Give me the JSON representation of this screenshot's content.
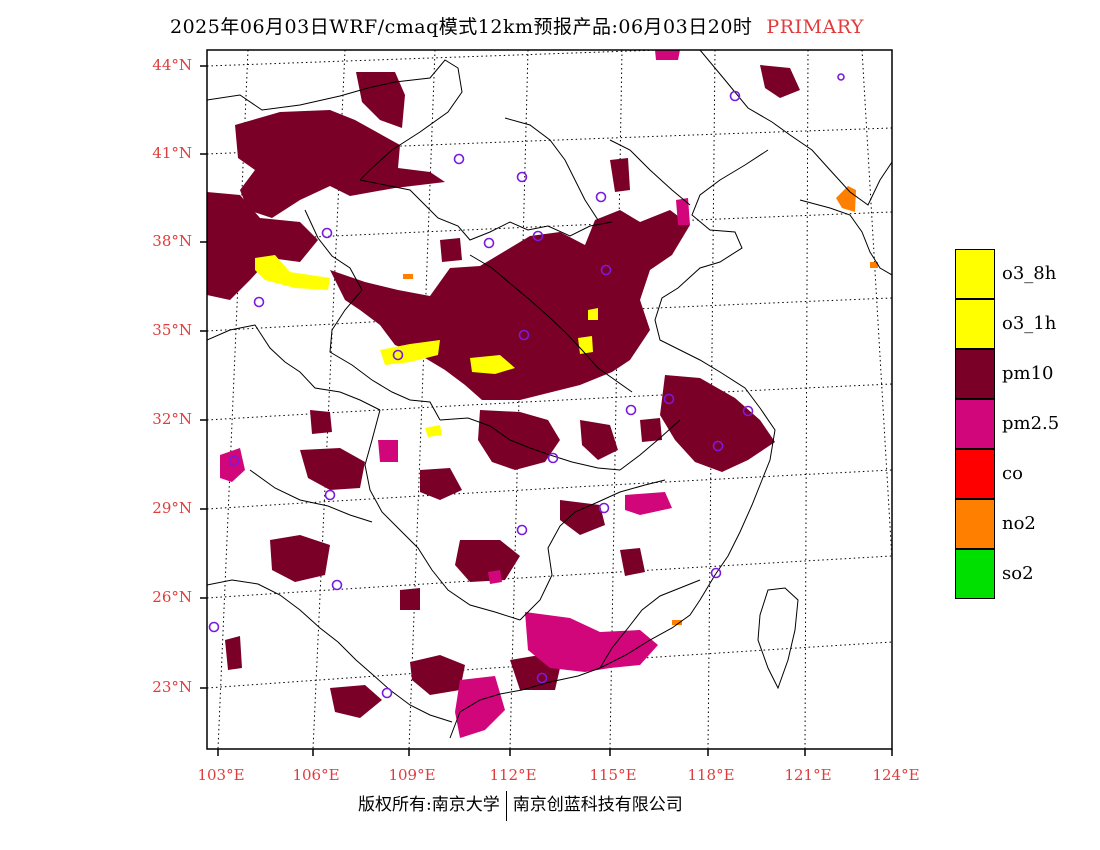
{
  "header": {
    "title": "2025年06月03日WRF/cmaq模式12km预报产品:06月03日20时",
    "tag": "PRIMARY"
  },
  "axes": {
    "latitudes": [
      "44°N",
      "41°N",
      "38°N",
      "35°N",
      "32°N",
      "29°N",
      "26°N",
      "23°N"
    ],
    "longitudes": [
      "103°E",
      "106°E",
      "109°E",
      "112°E",
      "115°E",
      "118°E",
      "121°E",
      "124°E"
    ]
  },
  "legend": {
    "items": [
      {
        "label": "o3_8h",
        "color": "#ffff00"
      },
      {
        "label": "o3_1h",
        "color": "#ffff00"
      },
      {
        "label": "pm10",
        "color": "#7a0028"
      },
      {
        "label": "pm2.5",
        "color": "#d0067a"
      },
      {
        "label": "co",
        "color": "#ff0000"
      },
      {
        "label": "no2",
        "color": "#ff7f00"
      },
      {
        "label": "so2",
        "color": "#00e000"
      }
    ]
  },
  "colors": {
    "pm10": "#7a0028",
    "pm25": "#d0067a",
    "o3": "#ffff00",
    "no2": "#ff7f00",
    "station": "#7a1adc",
    "axis_label": "#e03c3c"
  },
  "footer": {
    "left": "版权所有:南京大学",
    "right": "南京创蓝科技有限公司"
  }
}
